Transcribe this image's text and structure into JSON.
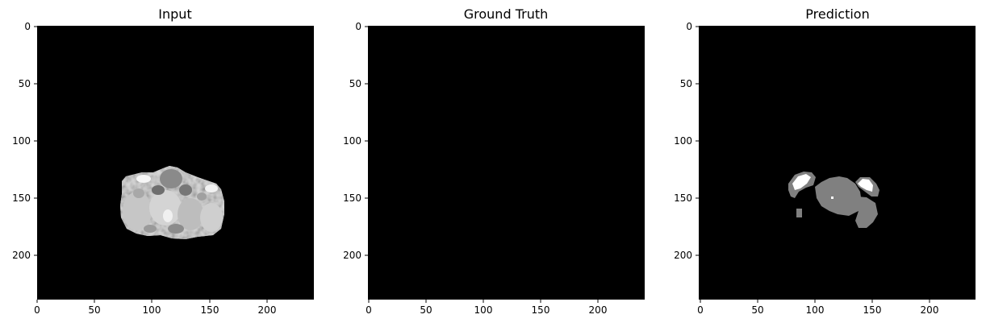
{
  "figure": {
    "panels": [
      {
        "id": "input",
        "title": "Input",
        "x_ticks": [
          "0",
          "50",
          "100",
          "150",
          "200"
        ],
        "y_ticks": [
          "0",
          "50",
          "100",
          "150",
          "200"
        ]
      },
      {
        "id": "ground_truth",
        "title": "Ground Truth",
        "x_ticks": [
          "0",
          "50",
          "100",
          "150",
          "200"
        ],
        "y_ticks": [
          "0",
          "50",
          "100",
          "150",
          "200"
        ]
      },
      {
        "id": "prediction",
        "title": "Prediction",
        "x_ticks": [
          "0",
          "50",
          "100",
          "150",
          "200"
        ],
        "y_ticks": [
          "0",
          "50",
          "100",
          "150",
          "200"
        ]
      }
    ]
  }
}
